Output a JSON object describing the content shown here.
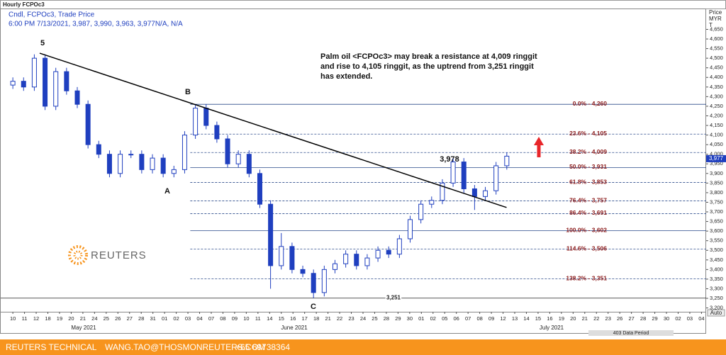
{
  "chart_data": {
    "type": "candlestick",
    "title": "Hourly FCPOc3",
    "subtitle": "Cndl, FCPOc3, Trade Price",
    "quote": "6:00 PM 7/13/2021, 3,987, 3,990, 3,963, 3,977N/A, N/A",
    "y_axis_label": [
      "Price",
      "MYR",
      "T"
    ],
    "annotation": [
      "Palm oil <FCPOc3> may break a resistance at 4,009 ringgit",
      "and rise to 4,105 ringgit, as the uptrend from 3,251 ringgit",
      "has extended."
    ],
    "wave_labels": [
      "5",
      "B",
      "A",
      "C"
    ],
    "peak_label": "3,978",
    "logo": "REUTERS",
    "months": [
      "May 2021",
      "June 2021",
      "July 2021"
    ],
    "period_label": "403 Data Period",
    "auto_label": "Auto",
    "footer": [
      "REUTERS TECHNICAL",
      "WANG.TAO@THOSMONREUTERS.COM",
      "+65 69738364"
    ],
    "color": "#1f3fbf",
    "x": [
      0,
      0.92,
      1.84,
      2.76,
      3.68,
      4.6,
      5.52,
      6.44,
      7.36,
      8.28,
      9.2,
      10.12,
      11.04,
      11.96,
      12.88,
      13.8,
      14.72,
      15.64,
      16.56,
      17.48,
      18.4,
      19.32,
      20.24,
      21.16,
      22.08,
      23,
      23.92,
      24.84,
      25.76,
      26.68,
      27.6,
      28.52,
      29.44,
      30.36,
      31.28,
      32.2,
      33.12,
      34.04,
      34.96,
      35.88,
      36.8,
      37.72,
      38.64,
      39.56,
      40.48,
      41.4,
      42.32
    ],
    "open": [
      4360,
      4380,
      4350,
      4500,
      4250,
      4430,
      4330,
      4260,
      4050,
      4000,
      3900,
      4000,
      4000,
      3920,
      3980,
      3900,
      3920,
      4100,
      4240,
      4150,
      4080,
      3950,
      4000,
      3900,
      3740,
      3420,
      3520,
      3400,
      3380,
      3280,
      3400,
      3430,
      3480,
      3420,
      3460,
      3500,
      3480,
      3560,
      3660,
      3740,
      3760,
      3850,
      3960,
      3820,
      3780,
      3810,
      3940
    ],
    "high": [
      4400,
      4400,
      4520,
      4520,
      4450,
      4450,
      4350,
      4280,
      4070,
      4020,
      4020,
      4020,
      4020,
      4000,
      4000,
      3940,
      4120,
      4260,
      4260,
      4170,
      4100,
      4020,
      4020,
      3920,
      3760,
      3590,
      3540,
      3420,
      3400,
      3420,
      3450,
      3500,
      3500,
      3480,
      3520,
      3520,
      3580,
      3680,
      3760,
      3780,
      3870,
      3978,
      3980,
      3840,
      3830,
      3960,
      4010
    ],
    "low": [
      4340,
      4330,
      4330,
      4230,
      4230,
      4310,
      4240,
      4030,
      3980,
      3880,
      3880,
      3980,
      3900,
      3900,
      3880,
      3880,
      3900,
      4080,
      4130,
      4060,
      3930,
      3930,
      3880,
      3720,
      3300,
      3400,
      3380,
      3360,
      3251,
      3260,
      3380,
      3410,
      3400,
      3400,
      3440,
      3460,
      3460,
      3540,
      3640,
      3720,
      3740,
      3830,
      3800,
      3710,
      3760,
      3790,
      3920
    ],
    "close": [
      4380,
      4350,
      4500,
      4250,
      4430,
      4330,
      4260,
      4050,
      4000,
      3900,
      4000,
      4000,
      3920,
      3980,
      3900,
      3920,
      4100,
      4240,
      4150,
      4080,
      3950,
      4000,
      3900,
      3740,
      3420,
      3520,
      3400,
      3380,
      3280,
      3400,
      3430,
      3480,
      3420,
      3460,
      3500,
      3480,
      3560,
      3660,
      3740,
      3760,
      3850,
      3960,
      3820,
      3780,
      3810,
      3940,
      3990
    ],
    "trendline": {
      "x": [
        2.3,
        42.3
      ],
      "y": [
        4526,
        3723
      ]
    },
    "fib_start": 15.2,
    "fib": [
      {
        "label": "0.0% - 4,260",
        "value": 4260,
        "dashed": false
      },
      {
        "label": "23.6% - 4,105",
        "value": 4105,
        "dashed": true
      },
      {
        "label": "38.2% - 4,009",
        "value": 4009,
        "dashed": true
      },
      {
        "label": "50.0% - 3,931",
        "value": 3931,
        "dashed": false
      },
      {
        "label": "61.8% - 3,853",
        "value": 3853,
        "dashed": true
      },
      {
        "label": "76.4% - 3,757",
        "value": 3757,
        "dashed": true
      },
      {
        "label": "86.4% - 3,691",
        "value": 3691,
        "dashed": true
      },
      {
        "label": "100.0% - 3,602",
        "value": 3602,
        "dashed": false
      },
      {
        "label": "114.6% - 3,506",
        "value": 3506,
        "dashed": true
      },
      {
        "label": "138.2% - 3,351",
        "value": 3351,
        "dashed": true
      }
    ],
    "support": {
      "value": 3251,
      "label": "3,251"
    },
    "last": {
      "value": 3977,
      "label": "3,977"
    },
    "arrow_color": "#e8262a",
    "xlim": [
      -1.04,
      59.4
    ],
    "ylim": [
      3180,
      4755
    ],
    "xticks": [
      {
        "value": 0,
        "label": "10"
      },
      {
        "value": 1,
        "label": "11"
      },
      {
        "value": 2,
        "label": "12"
      },
      {
        "value": 3,
        "label": "18"
      },
      {
        "value": 4,
        "label": "19"
      },
      {
        "value": 5,
        "label": "20"
      },
      {
        "value": 6,
        "label": "21"
      },
      {
        "value": 7,
        "label": "24"
      },
      {
        "value": 8,
        "label": "25"
      },
      {
        "value": 9,
        "label": "26"
      },
      {
        "value": 10,
        "label": "27"
      },
      {
        "value": 11,
        "label": "28"
      },
      {
        "value": 12,
        "label": "31"
      },
      {
        "value": 13,
        "label": "01"
      },
      {
        "value": 14,
        "label": "02"
      },
      {
        "value": 15,
        "label": "03"
      },
      {
        "value": 16,
        "label": "04"
      },
      {
        "value": 17,
        "label": "07"
      },
      {
        "value": 18,
        "label": "08"
      },
      {
        "value": 19,
        "label": "09"
      },
      {
        "value": 20,
        "label": "10"
      },
      {
        "value": 21,
        "label": "11"
      },
      {
        "value": 22,
        "label": "14"
      },
      {
        "value": 23,
        "label": "15"
      },
      {
        "value": 24,
        "label": "16"
      },
      {
        "value": 25,
        "label": "17"
      },
      {
        "value": 26,
        "label": "18"
      },
      {
        "value": 27,
        "label": "21"
      },
      {
        "value": 28,
        "label": "22"
      },
      {
        "value": 29,
        "label": "23"
      },
      {
        "value": 30,
        "label": "24"
      },
      {
        "value": 31,
        "label": "25"
      },
      {
        "value": 32,
        "label": "28"
      },
      {
        "value": 33,
        "label": "29"
      },
      {
        "value": 34,
        "label": "30"
      },
      {
        "value": 35,
        "label": "01"
      },
      {
        "value": 36,
        "label": "02"
      },
      {
        "value": 37,
        "label": "05"
      },
      {
        "value": 38,
        "label": "06"
      },
      {
        "value": 39,
        "label": "07"
      },
      {
        "value": 40,
        "label": "08"
      },
      {
        "value": 41,
        "label": "09"
      },
      {
        "value": 42,
        "label": "12"
      },
      {
        "value": 43,
        "label": "13"
      },
      {
        "value": 44,
        "label": "14"
      },
      {
        "value": 45,
        "label": "15"
      },
      {
        "value": 46,
        "label": "16"
      },
      {
        "value": 47,
        "label": "19"
      },
      {
        "value": 48,
        "label": "20"
      },
      {
        "value": 49,
        "label": "21"
      },
      {
        "value": 50,
        "label": "22"
      },
      {
        "value": 51,
        "label": "23"
      },
      {
        "value": 52,
        "label": "26"
      },
      {
        "value": 53,
        "label": "27"
      },
      {
        "value": 54,
        "label": "28"
      },
      {
        "value": 55,
        "label": "29"
      },
      {
        "value": 56,
        "label": "30"
      },
      {
        "value": 57,
        "label": "02"
      },
      {
        "value": 58,
        "label": "03"
      },
      {
        "value": 59,
        "label": "04"
      }
    ],
    "yticks": [
      {
        "value": 3200,
        "label": "3,200"
      },
      {
        "value": 3250,
        "label": "3,250"
      },
      {
        "value": 3300,
        "label": "3,300"
      },
      {
        "value": 3350,
        "label": "3,350"
      },
      {
        "value": 3400,
        "label": "3,400"
      },
      {
        "value": 3450,
        "label": "3,450"
      },
      {
        "value": 3500,
        "label": "3,500"
      },
      {
        "value": 3550,
        "label": "3,550"
      },
      {
        "value": 3600,
        "label": "3,600"
      },
      {
        "value": 3650,
        "label": "3,650"
      },
      {
        "value": 3700,
        "label": "3,700"
      },
      {
        "value": 3750,
        "label": "3,750"
      },
      {
        "value": 3800,
        "label": "3,800"
      },
      {
        "value": 3850,
        "label": "3,850"
      },
      {
        "value": 3900,
        "label": "3,900"
      },
      {
        "value": 3950,
        "label": "3,950"
      },
      {
        "value": 4000,
        "label": "4,000"
      },
      {
        "value": 4050,
        "label": "4,050"
      },
      {
        "value": 4100,
        "label": "4,100"
      },
      {
        "value": 4150,
        "label": "4,150"
      },
      {
        "value": 4200,
        "label": "4,200"
      },
      {
        "value": 4250,
        "label": "4,250"
      },
      {
        "value": 4300,
        "label": "4,300"
      },
      {
        "value": 4350,
        "label": "4,350"
      },
      {
        "value": 4400,
        "label": "4,400"
      },
      {
        "value": 4450,
        "label": "4,450"
      },
      {
        "value": 4500,
        "label": "4,500"
      },
      {
        "value": 4550,
        "label": "4,550"
      },
      {
        "value": 4600,
        "label": "4,600"
      },
      {
        "value": 4650,
        "label": "4,650"
      }
    ]
  }
}
